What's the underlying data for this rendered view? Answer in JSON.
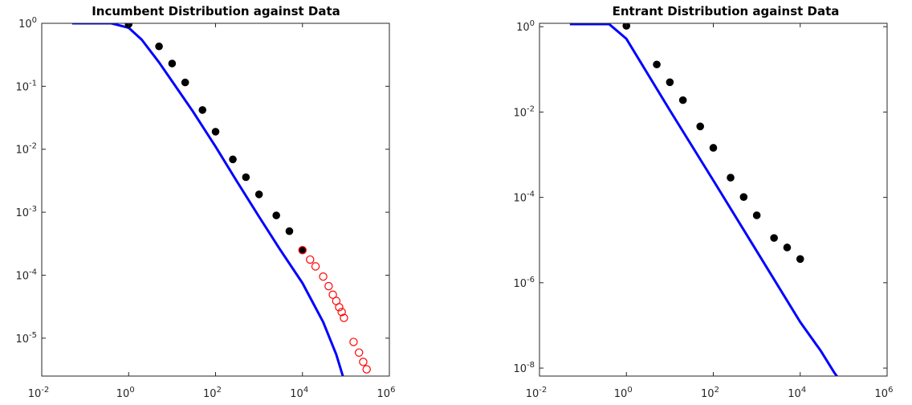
{
  "chart_data": [
    {
      "type": "scatter",
      "title": "Incumbent Distribution against Data",
      "xlabel": "",
      "ylabel": "",
      "x_scale": "log",
      "y_scale": "log",
      "xlim": [
        0.01,
        1000000
      ],
      "ylim": [
        2.5e-06,
        1
      ],
      "x_ticks": [
        {
          "value": 0.01,
          "base": "10",
          "exp": "-2"
        },
        {
          "value": 1,
          "base": "10",
          "exp": "0"
        },
        {
          "value": 100,
          "base": "10",
          "exp": "2"
        },
        {
          "value": 10000,
          "base": "10",
          "exp": "4"
        },
        {
          "value": 1000000,
          "base": "10",
          "exp": "6"
        }
      ],
      "y_ticks": [
        {
          "value": 1,
          "base": "10",
          "exp": "0"
        },
        {
          "value": 0.1,
          "base": "10",
          "exp": "-1"
        },
        {
          "value": 0.01,
          "base": "10",
          "exp": "-2"
        },
        {
          "value": 0.001,
          "base": "10",
          "exp": "-3"
        },
        {
          "value": 0.0001,
          "base": "10",
          "exp": "-4"
        },
        {
          "value": 1e-05,
          "base": "10",
          "exp": "-5"
        }
      ],
      "grid": false,
      "series": [
        {
          "kind": "line",
          "color": "#0000ff",
          "x": [
            0.05,
            0.4,
            1,
            2,
            5,
            10,
            30,
            100,
            300,
            1000,
            3000,
            10000,
            30000,
            60000,
            85000
          ],
          "y": [
            1,
            1,
            0.85,
            0.55,
            0.24,
            0.12,
            0.04,
            0.011,
            0.0032,
            0.00085,
            0.00026,
            7.5e-05,
            1.8e-05,
            5.5e-06,
            2.5e-06
          ]
        },
        {
          "kind": "scatter",
          "marker": "filled-circle",
          "color": "#000000",
          "x": [
            1,
            5,
            10,
            20,
            50,
            100,
            250,
            500,
            1000,
            2500,
            5000,
            10000
          ],
          "y": [
            0.97,
            0.43,
            0.23,
            0.115,
            0.042,
            0.019,
            0.0069,
            0.0036,
            0.00192,
            0.00089,
            0.0005,
            0.00025
          ]
        },
        {
          "kind": "scatter",
          "marker": "open-circle",
          "color": "#ff0000",
          "x": [
            10000,
            15000,
            20000,
            30000,
            40000,
            50000,
            60000,
            70000,
            80000,
            90000,
            150000,
            200000,
            250000,
            300000
          ],
          "y": [
            0.00025,
            0.000177,
            0.000138,
            9.5e-05,
            6.7e-05,
            4.9e-05,
            3.9e-05,
            3.1e-05,
            2.6e-05,
            2.1e-05,
            8.7e-06,
            5.9e-06,
            4.2e-06,
            3.2e-06
          ]
        }
      ]
    },
    {
      "type": "scatter",
      "title": "Entrant Distribution against Data",
      "xlabel": "",
      "ylabel": "",
      "x_scale": "log",
      "y_scale": "log",
      "xlim": [
        0.01,
        1000000
      ],
      "ylim": [
        6.5e-09,
        1.2
      ],
      "x_ticks": [
        {
          "value": 0.01,
          "base": "10",
          "exp": "-2"
        },
        {
          "value": 1,
          "base": "10",
          "exp": "0"
        },
        {
          "value": 100,
          "base": "10",
          "exp": "2"
        },
        {
          "value": 10000,
          "base": "10",
          "exp": "4"
        },
        {
          "value": 1000000,
          "base": "10",
          "exp": "6"
        }
      ],
      "y_ticks": [
        {
          "value": 1,
          "base": "10",
          "exp": "0"
        },
        {
          "value": 0.01,
          "base": "10",
          "exp": "-2"
        },
        {
          "value": 0.0001,
          "base": "10",
          "exp": "-4"
        },
        {
          "value": 1e-06,
          "base": "10",
          "exp": "-6"
        },
        {
          "value": 1e-08,
          "base": "10",
          "exp": "-8"
        }
      ],
      "grid": false,
      "series": [
        {
          "kind": "line",
          "color": "#0000ff",
          "x": [
            0.05,
            0.4,
            1,
            5,
            10,
            100,
            1000,
            10000,
            30000,
            60000,
            90000
          ],
          "y": [
            1.15,
            1.15,
            0.52,
            0.035,
            0.011,
            0.00025,
            5.5e-06,
            1.2e-07,
            2.5e-08,
            8e-09,
            4.5e-09
          ]
        },
        {
          "kind": "scatter",
          "marker": "filled-circle",
          "color": "#000000",
          "x": [
            1,
            5,
            10,
            20,
            50,
            100,
            250,
            500,
            1000,
            2500,
            5000,
            10000
          ],
          "y": [
            1.05,
            0.13,
            0.05,
            0.019,
            0.0046,
            0.00145,
            0.00029,
            0.000102,
            3.8e-05,
            1.12e-05,
            6.7e-06,
            3.6e-06
          ]
        }
      ]
    }
  ]
}
